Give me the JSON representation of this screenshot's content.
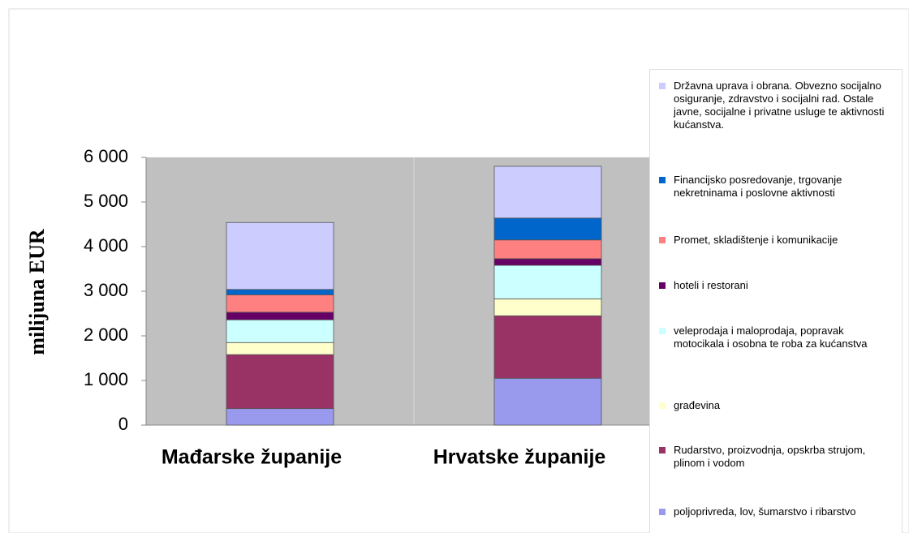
{
  "chart_data": {
    "type": "stacked_bar",
    "y_label": "milijuna EUR",
    "categories": [
      "Mađarske županije",
      "Hrvatske županije"
    ],
    "series": [
      {
        "name": "poljoprivreda, lov, šumarstvo i ribarstvo",
        "color": "#9999ee",
        "values": [
          370,
          1050
        ]
      },
      {
        "name": "Rudarstvo, proizvodnja, opskrba strujom, plinom i vodom",
        "color": "#993366",
        "values": [
          1210,
          1400
        ]
      },
      {
        "name": "građevina",
        "color": "#ffffcc",
        "values": [
          270,
          380
        ]
      },
      {
        "name": "veleprodaja i maloprodaja, popravak motocikala i osobna te roba za kućanstva",
        "color": "#ccffff",
        "values": [
          510,
          750
        ]
      },
      {
        "name": "hoteli i restorani",
        "color": "#660066",
        "values": [
          170,
          150
        ]
      },
      {
        "name": "Promet, skladištenje i komunikacije",
        "color": "#ff8080",
        "values": [
          390,
          420
        ]
      },
      {
        "name": "Financijsko posredovanje, trgovanje nekretninama i poslovne aktivnosti",
        "color": "#0066cc",
        "values": [
          120,
          490
        ]
      },
      {
        "name": "Državna uprava i obrana. Obvezno socijalno osiguranje, zdravstvo i socijalni rad. Ostale javne, socijalne i privatne usluge te aktivnosti kućanstva.",
        "color": "#ccccff",
        "values": [
          1500,
          1160
        ]
      }
    ],
    "ylim": [
      0,
      6000
    ],
    "yticks": [
      0,
      {
        "value": 1000,
        "label": "1 000"
      },
      {
        "value": 2000,
        "label": "2 000"
      },
      {
        "value": 3000,
        "label": "3 000"
      },
      {
        "value": 4000,
        "label": "4 000"
      },
      {
        "value": 5000,
        "label": "5 000"
      },
      {
        "value": 6000,
        "label": "6 000"
      }
    ],
    "grid": false
  }
}
